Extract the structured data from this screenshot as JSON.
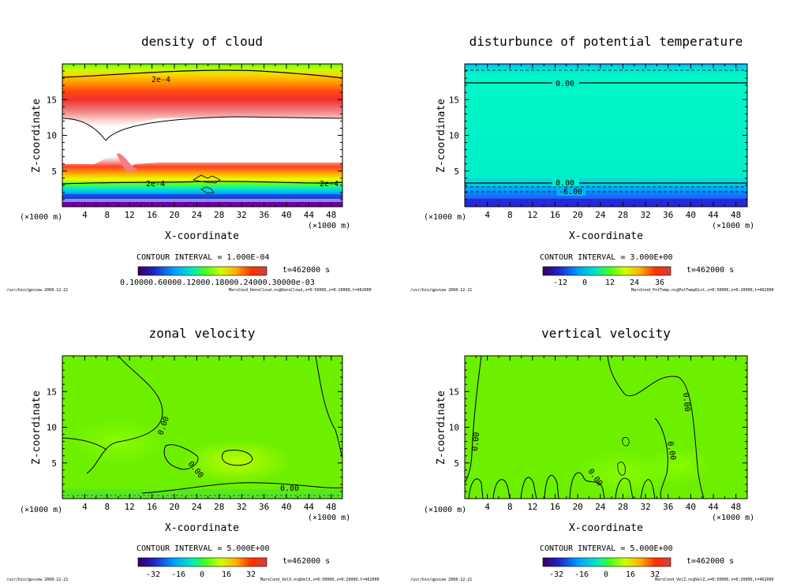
{
  "chart_data": [
    {
      "type": "heatmap",
      "title": "density of cloud",
      "xlabel": "X-coordinate",
      "ylabel": "Z-coordinate",
      "x_unit_left": "(×1000 m)",
      "x_unit_right": "(×1000 m)",
      "xlim": [
        0,
        50
      ],
      "ylim": [
        0,
        20
      ],
      "xticks": [
        "4",
        "8",
        "12",
        "16",
        "20",
        "24",
        "28",
        "32",
        "36",
        "40",
        "44",
        "48"
      ],
      "yticks": [
        "5",
        "10",
        "15"
      ],
      "contour_labels": [
        "2e-4",
        "2e-4",
        "2e-4"
      ],
      "contour_interval": "CONTOUR INTERVAL = 1.000E-04",
      "time": "t=462000 s",
      "colorbar_labels": "0.10000.60000.12000.18000.24000.30000e-03",
      "footer_left": "/usr/bin/gpview   2008-12-21",
      "footer_right": "MarsCond_DensCloud.nc@DensCloud,x=0:50000,z=0:20000,t=462000"
    },
    {
      "type": "heatmap",
      "title": "disturbunce of potential temperature",
      "xlabel": "X-coordinate",
      "ylabel": "Z-coordinate",
      "x_unit_left": "(×1000 m)",
      "x_unit_right": "(×1000 m)",
      "xlim": [
        0,
        50
      ],
      "ylim": [
        0,
        20
      ],
      "xticks": [
        "4",
        "8",
        "12",
        "16",
        "20",
        "24",
        "28",
        "32",
        "36",
        "40",
        "44",
        "48"
      ],
      "yticks": [
        "5",
        "10",
        "15"
      ],
      "contour_labels": [
        "0.00",
        "0.00",
        "-6.00"
      ],
      "contour_interval": "CONTOUR INTERVAL = 3.000E+00",
      "time": "t=462000 s",
      "colorbar_ticks": [
        "-12",
        "0",
        "12",
        "24",
        "36"
      ],
      "footer_left": "/usr/bin/gpview   2008-12-21",
      "footer_right": "MarsCond_PotTemp.nc@PotTempDist,x=0:50000,z=0:20000,t=462000"
    },
    {
      "type": "heatmap",
      "title": "zonal velocity",
      "xlabel": "X-coordinate",
      "ylabel": "Z-coordinate",
      "x_unit_left": "(×1000 m)",
      "x_unit_right": "(×1000 m)",
      "xlim": [
        0,
        50
      ],
      "ylim": [
        0,
        20
      ],
      "xticks": [
        "4",
        "8",
        "12",
        "16",
        "20",
        "24",
        "28",
        "32",
        "36",
        "40",
        "44",
        "48"
      ],
      "yticks": [
        "5",
        "10",
        "15"
      ],
      "contour_labels": [
        "0.00",
        "0.00",
        "0.00"
      ],
      "contour_interval": "CONTOUR INTERVAL = 5.000E+00",
      "time": "t=462000 s",
      "colorbar_ticks": [
        "-32",
        "-16",
        "0",
        "16",
        "32"
      ],
      "footer_left": "/usr/bin/gpview   2008-12-21",
      "footer_right": "MarsCond_VelX.nc@VelX,x=0:50000,z=0:20000,t=462000"
    },
    {
      "type": "heatmap",
      "title": "vertical velocity",
      "xlabel": "X-coordinate",
      "ylabel": "Z-coordinate",
      "x_unit_left": "(×1000 m)",
      "x_unit_right": "(×1000 m)",
      "xlim": [
        0,
        50
      ],
      "ylim": [
        0,
        20
      ],
      "xticks": [
        "4",
        "8",
        "12",
        "16",
        "20",
        "24",
        "28",
        "32",
        "36",
        "40",
        "44",
        "48"
      ],
      "yticks": [
        "5",
        "10",
        "15"
      ],
      "contour_labels": [
        "0.00",
        "0.00",
        "0.00",
        "0.00"
      ],
      "contour_interval": "CONTOUR INTERVAL = 5.000E+00",
      "time": "t=462000 s",
      "colorbar_ticks": [
        "-32",
        "-16",
        "0",
        "16",
        "32"
      ],
      "footer_left": "/usr/bin/gpview   2008-12-21",
      "footer_right": "MarsCond_VelZ.nc@VelZ,x=0:50000,z=0:20000,t=462000"
    }
  ]
}
